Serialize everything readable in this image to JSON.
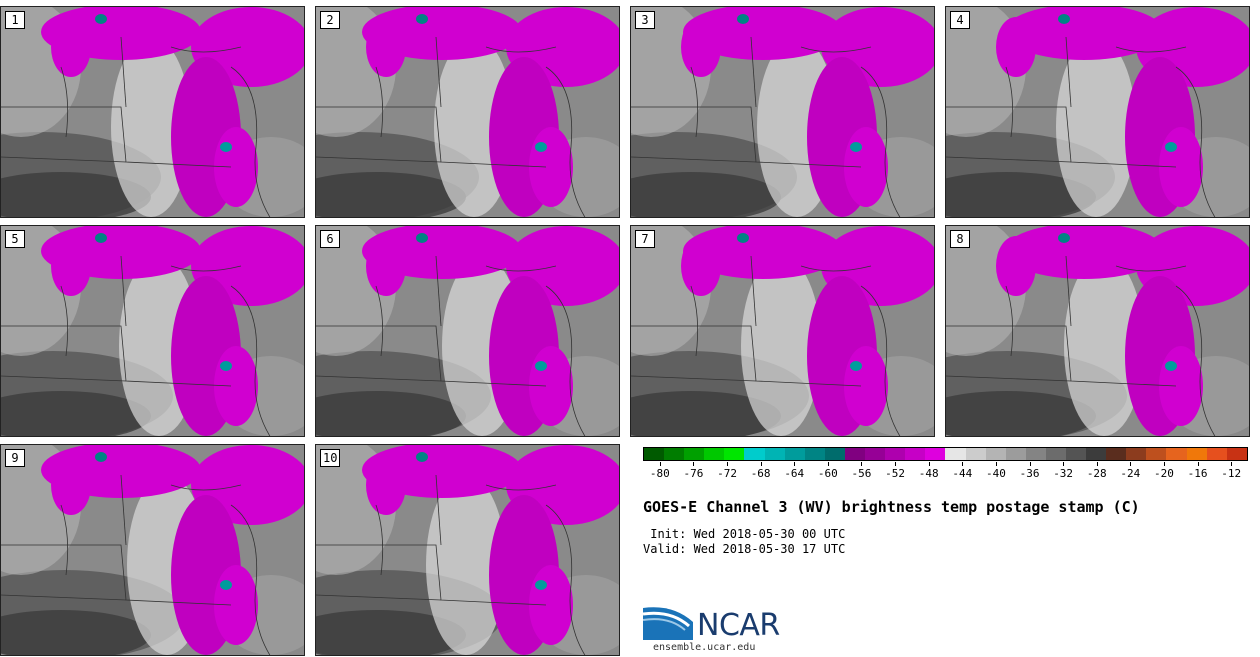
{
  "panels": [
    {
      "label": "1"
    },
    {
      "label": "2"
    },
    {
      "label": "3"
    },
    {
      "label": "4"
    },
    {
      "label": "5"
    },
    {
      "label": "6"
    },
    {
      "label": "7"
    },
    {
      "label": "8"
    },
    {
      "label": "9"
    },
    {
      "label": "10"
    }
  ],
  "colorbar": {
    "colors": [
      "#005a00",
      "#007d00",
      "#00a000",
      "#00c800",
      "#00e600",
      "#00cccc",
      "#00b4b4",
      "#009c9c",
      "#008484",
      "#006c6c",
      "#800080",
      "#960096",
      "#ae00ae",
      "#c600c6",
      "#de00de",
      "#e6e6e6",
      "#cccccc",
      "#b4b4b4",
      "#9c9c9c",
      "#848484",
      "#6c6c6c",
      "#545454",
      "#3c3c3c",
      "#5a2d1e",
      "#8c3c1e",
      "#be501e",
      "#e6641e",
      "#f0780a",
      "#e6501e",
      "#c83214"
    ],
    "min": -82,
    "max": -10,
    "ticks": [
      "-80",
      "-76",
      "-72",
      "-68",
      "-64",
      "-60",
      "-56",
      "-52",
      "-48",
      "-44",
      "-40",
      "-36",
      "-32",
      "-28",
      "-24",
      "-20",
      "-16",
      "-12"
    ]
  },
  "title": "GOES-E Channel 3 (WV) brightness temp postage stamp (C)",
  "init": " Init: Wed 2018-05-30 00 UTC",
  "valid": "Valid: Wed 2018-05-30 17 UTC",
  "logo": {
    "text": "NCAR",
    "url": "ensemble.ucar.edu"
  }
}
